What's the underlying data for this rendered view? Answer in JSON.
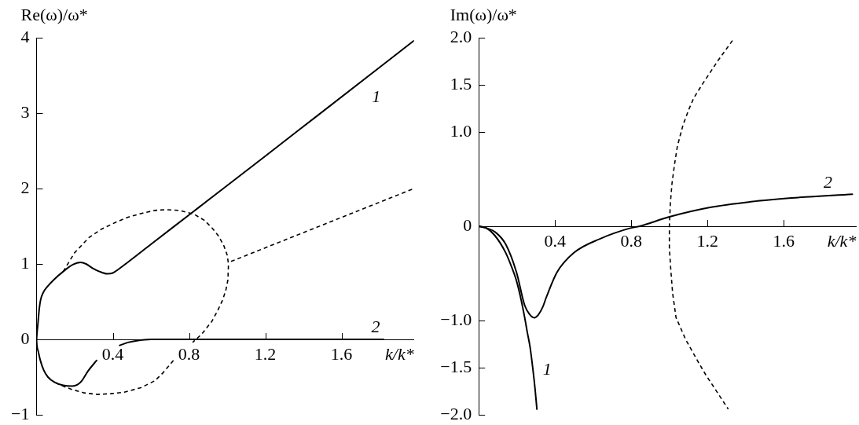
{
  "chart_data": [
    {
      "type": "line",
      "xlabel": "k/k*",
      "ylabel": "Re(ω)/ω*",
      "xlim": [
        0,
        1.98
      ],
      "ylim": [
        -1,
        4
      ],
      "xticks": [
        0.4,
        0.8,
        1.2,
        1.6
      ],
      "yticks": [
        {
          "value": -1,
          "label": "−1"
        },
        0,
        1,
        2,
        3,
        4
      ],
      "series": [
        {
          "name": "1",
          "color": "#000000",
          "x": [
            0,
            0.003,
            0.007,
            0.014,
            0.021,
            0.035,
            0.057,
            0.09,
            0.14,
            0.19,
            0.23,
            0.26,
            0.29,
            0.33,
            0.37,
            0.4,
            0.43,
            0.6,
            0.81,
            1.2,
            1.47,
            1.98
          ],
          "values": [
            0,
            0.1,
            0.2,
            0.4,
            0.52,
            0.62,
            0.7,
            0.79,
            0.9,
            0.99,
            1.02,
            1,
            0.95,
            0.9,
            0.87,
            0.88,
            0.93,
            1.26,
            1.67,
            2.43,
            2.96,
            3.96
          ]
        },
        {
          "name": "2",
          "color": "#000000",
          "x": [
            0,
            0.002,
            0.009,
            0.02,
            0.038,
            0.06,
            0.095,
            0.14,
            0.187,
            0.215,
            0.237,
            0.27,
            0.315,
            0.38,
            0.436,
            0.48,
            0.52,
            0.6,
            1,
            1.82
          ],
          "values": [
            0,
            -0.08,
            -0.16,
            -0.28,
            -0.41,
            -0.5,
            -0.57,
            -0.61,
            -0.62,
            -0.6,
            -0.55,
            -0.42,
            -0.28,
            null,
            -0.08,
            -0.04,
            -0.02,
            0,
            0,
            0
          ]
        },
        {
          "color": "#000000",
          "line_style": "dashed",
          "x": [
            0.14,
            0.2,
            0.275,
            0.34,
            0.413,
            0.48,
            0.55,
            0.62,
            0.681,
            0.75,
            0.826,
            0.88,
            0.92,
            0.955,
            0.983,
            1,
            1.007,
            1.004,
            0.993,
            0.976,
            0.95,
            0.92,
            0.867,
            0.819,
            0.77,
            0.718,
            0.661,
            0.62,
            0.548,
            0.46,
            0.39,
            0.32,
            0.25,
            0.18,
            0.13,
            0.095
          ],
          "values": [
            0.9,
            1.15,
            1.35,
            1.46,
            1.55,
            1.62,
            1.67,
            1.71,
            1.72,
            1.71,
            1.66,
            1.58,
            1.48,
            1.37,
            1.24,
            1.12,
            1,
            0.79,
            0.65,
            0.52,
            0.38,
            0.24,
            0.07,
            -0.04,
            null,
            -0.28,
            -0.45,
            -0.55,
            -0.64,
            -0.7,
            -0.72,
            -0.73,
            -0.71,
            -0.66,
            -0.61,
            -0.57
          ]
        },
        {
          "color": "#000000",
          "line_style": "dashed",
          "x": [
            1.97,
            1.007
          ],
          "values": [
            1.99,
            1.02
          ]
        }
      ]
    },
    {
      "type": "line",
      "xlabel": "k/k*",
      "ylabel": "Im(ω)/ω*",
      "xlim": [
        0,
        1.98
      ],
      "ylim": [
        -2,
        2
      ],
      "xticks": [
        0.4,
        0.8,
        1.2,
        1.6
      ],
      "yticks": [
        {
          "value": -2,
          "label": "−2.0"
        },
        {
          "value": -1.5,
          "label": "−1.5"
        },
        {
          "value": -1,
          "label": "−1.0"
        },
        0,
        {
          "value": 1,
          "label": "1.0"
        },
        {
          "value": 1.5,
          "label": "1.5"
        },
        {
          "value": 2,
          "label": "2.0"
        }
      ],
      "series": [
        {
          "name": "1",
          "color": "#000000",
          "x": [
            0,
            0.04,
            0.085,
            0.141,
            0.17,
            0.198,
            0.22,
            0.241,
            0.255,
            0.269,
            0.283,
            0.295,
            0.305
          ],
          "values": [
            0,
            -0.02,
            -0.1,
            -0.28,
            -0.42,
            -0.58,
            -0.76,
            -0.97,
            -1.13,
            -1.28,
            -1.5,
            -1.72,
            -1.94
          ]
        },
        {
          "name": "2",
          "color": "#000000",
          "x": [
            0,
            0.04,
            0.085,
            0.141,
            0.198,
            0.241,
            0.265,
            0.291,
            0.312,
            0.335,
            0.355,
            0.41,
            0.5,
            0.64,
            0.795,
            0.844,
            1,
            1.213,
            1.427,
            1.64,
            1.96
          ],
          "values": [
            0,
            -0.02,
            -0.06,
            -0.19,
            -0.49,
            -0.84,
            -0.93,
            -0.97,
            -0.94,
            -0.86,
            -0.75,
            -0.49,
            -0.28,
            -0.13,
            -0.02,
            0,
            0.1,
            0.2,
            0.26,
            0.3,
            0.34
          ]
        },
        {
          "color": "#000000",
          "line_style": "dashed",
          "x": [
            1.331,
            1.256,
            1.171,
            1.128,
            1.1,
            1.071,
            1.042,
            1.028,
            1.014,
            1.005,
            1,
            1,
            1.007,
            1.017,
            1.035,
            1.057,
            1.085,
            1.121,
            1.157,
            1.192,
            1.228,
            1.27,
            1.309
          ],
          "values": [
            1.97,
            1.76,
            1.5,
            1.36,
            1.23,
            1.07,
            0.85,
            0.67,
            0.46,
            0.24,
            0,
            -0.23,
            -0.45,
            -0.71,
            -0.97,
            -1.07,
            -1.2,
            -1.33,
            -1.46,
            -1.58,
            -1.69,
            -1.82,
            -1.94
          ]
        }
      ]
    }
  ]
}
